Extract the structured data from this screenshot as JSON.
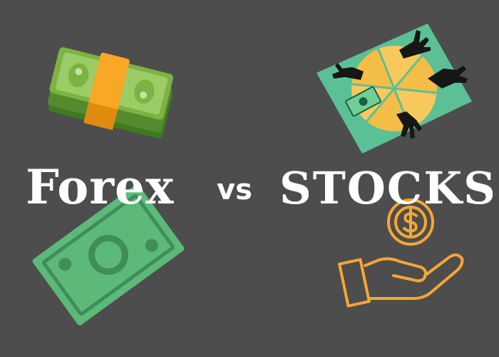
{
  "colors": {
    "background": "#4d4d4d",
    "title_text": "#ffffff",
    "cash_green": "#7cb342",
    "cash_band": "#f9a825",
    "note_green": "#5cb97a",
    "board_green": "#5cc097",
    "slice_yellow": "#f7c95c",
    "hand_orange": "#f7a634"
  },
  "title": {
    "left_word": "Forex",
    "middle_word": "vs",
    "right_word": "STOCKS"
  },
  "icons": {
    "cash_stack": "money-stack-icon",
    "banknote": "banknote-icon",
    "shared_pie": "hands-sharing-pie-icon",
    "hand_coin": "hand-holding-dollar-icon"
  }
}
